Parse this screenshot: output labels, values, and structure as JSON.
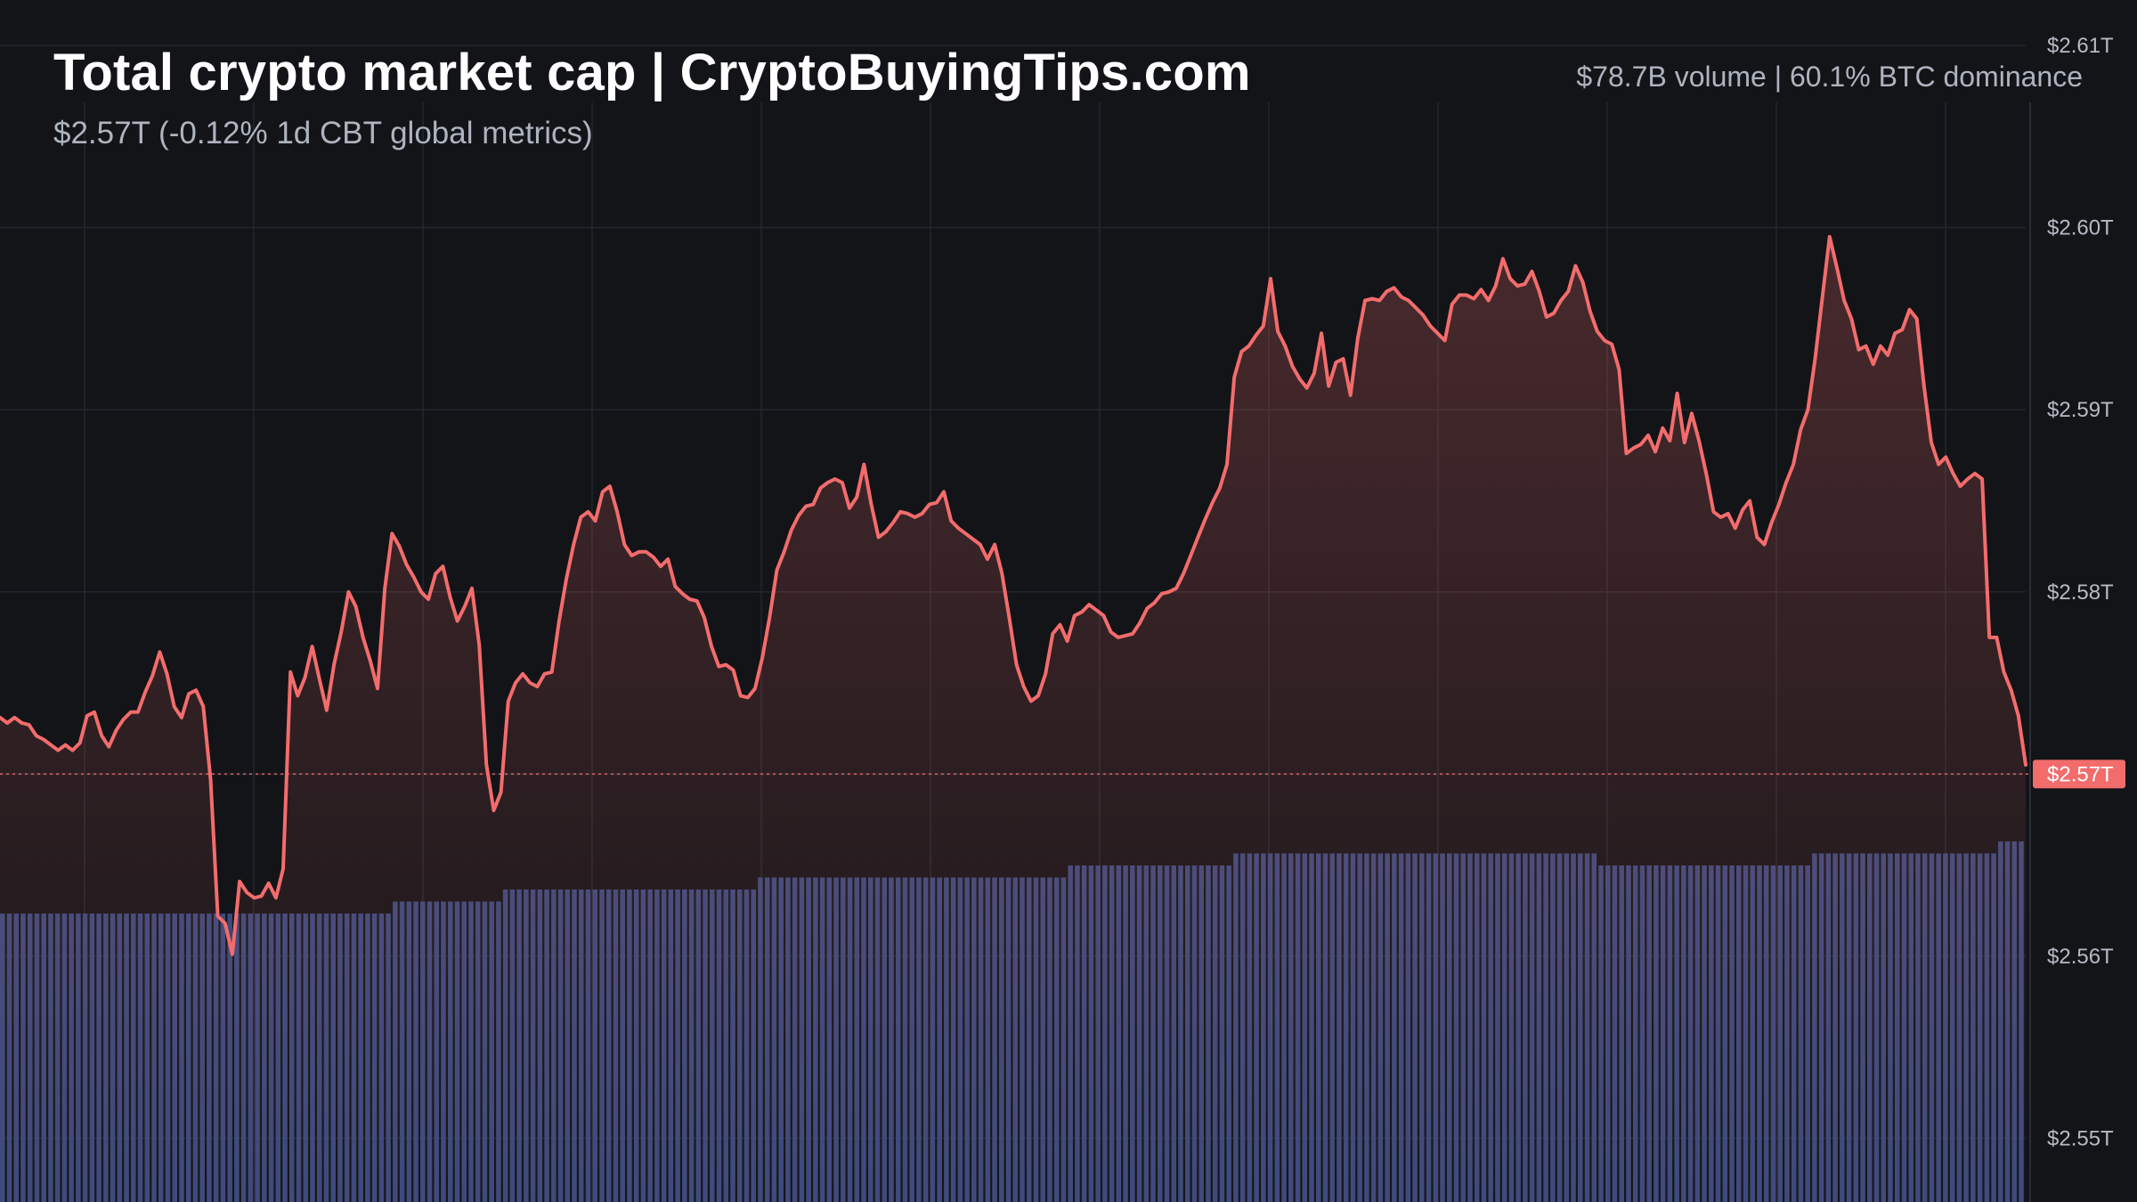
{
  "header": {
    "title": "Total crypto market cap | CryptoBuyingTips.com",
    "subtitle": "$2.57T (-0.12% 1d CBT global metrics)",
    "stats": "$78.7B volume | 60.1% BTC dominance"
  },
  "colors": {
    "background": "#121418",
    "line": "#f36c6c",
    "volume": "#3a4a7c",
    "grid": "#23262c",
    "price_tag": "#f36c6c"
  },
  "chart_data": {
    "type": "line",
    "title": "Total crypto market cap | CryptoBuyingTips.com",
    "ylim": [
      2.5465,
      2.6125
    ],
    "y_ticks": [
      {
        "value": 2.61,
        "label": "$2.61T"
      },
      {
        "value": 2.6,
        "label": "$2.60T"
      },
      {
        "value": 2.59,
        "label": "$2.59T"
      },
      {
        "value": 2.58,
        "label": "$2.58T"
      },
      {
        "value": 2.57,
        "label": "$2.57T"
      },
      {
        "value": 2.56,
        "label": "$2.56T"
      },
      {
        "value": 2.55,
        "label": "$2.55T"
      }
    ],
    "grid": true,
    "last_price": {
      "value": 2.57,
      "label": "$2.57T"
    },
    "series": [
      {
        "values": [
          2.5731,
          2.5728,
          2.5731,
          2.5728,
          2.5727,
          2.5721,
          2.5719,
          2.5716,
          2.5713,
          2.5716,
          2.5713,
          2.5717,
          2.5732,
          2.5734,
          2.5721,
          2.5715,
          2.5724,
          2.573,
          2.5734,
          2.5734,
          2.5745,
          2.5754,
          2.5767,
          2.5755,
          2.5737,
          2.5731,
          2.5744,
          2.5746,
          2.5737,
          2.5697,
          2.5622,
          2.5618,
          2.5601,
          2.5641,
          2.5635,
          2.5632,
          2.5633,
          2.564,
          2.5632,
          2.5648,
          2.5756,
          2.5743,
          2.5753,
          2.577,
          2.5752,
          2.5735,
          2.576,
          2.5778,
          2.58,
          2.5792,
          2.5775,
          2.5762,
          2.5747,
          2.5802,
          2.5832,
          2.5825,
          2.5815,
          2.5808,
          2.58,
          2.5796,
          2.581,
          2.5814,
          2.5797,
          2.5784,
          2.5792,
          2.5802,
          2.5771,
          2.5705,
          2.568,
          2.569,
          2.574,
          2.575,
          2.5755,
          2.575,
          2.5748,
          2.5755,
          2.5756,
          2.5784,
          2.5807,
          2.5826,
          2.5841,
          2.5844,
          2.5839,
          2.5855,
          2.5858,
          2.5844,
          2.5826,
          2.582,
          2.5822,
          2.5822,
          2.5819,
          2.5814,
          2.5818,
          2.5803,
          2.5799,
          2.5796,
          2.5795,
          2.5786,
          2.577,
          2.5759,
          2.576,
          2.5757,
          2.5743,
          2.5742,
          2.5747,
          2.5764,
          2.5786,
          2.5812,
          2.5822,
          2.5834,
          2.5842,
          2.5847,
          2.5848,
          2.5857,
          2.586,
          2.5862,
          2.586,
          2.5846,
          2.5852,
          2.587,
          2.5848,
          2.583,
          2.5833,
          2.5838,
          2.5844,
          2.5843,
          2.5841,
          2.5843,
          2.5848,
          2.5849,
          2.5855,
          2.5839,
          2.5835,
          2.5832,
          2.5829,
          2.5826,
          2.5818,
          2.5826,
          2.581,
          2.5786,
          2.576,
          2.5748,
          2.574,
          2.5743,
          2.5755,
          2.5777,
          2.5782,
          2.5773,
          2.5787,
          2.5789,
          2.5793,
          2.579,
          2.5787,
          2.5778,
          2.5775,
          2.5776,
          2.5777,
          2.5783,
          2.5791,
          2.5794,
          2.5799,
          2.58,
          2.5802,
          2.581,
          2.582,
          2.583,
          2.584,
          2.5849,
          2.5857,
          2.587,
          2.5918,
          2.5932,
          2.5935,
          2.5941,
          2.5946,
          2.5972,
          2.5943,
          2.5935,
          2.5924,
          2.5917,
          2.5912,
          2.592,
          2.5942,
          2.5913,
          2.5926,
          2.5928,
          2.5908,
          2.5939,
          2.596,
          2.5961,
          2.596,
          2.5965,
          2.5967,
          2.5962,
          2.596,
          2.5956,
          2.5952,
          2.5946,
          2.5942,
          2.5938,
          2.5958,
          2.5963,
          2.5963,
          2.5961,
          2.5966,
          2.596,
          2.5968,
          2.5983,
          2.5972,
          2.5968,
          2.5969,
          2.5976,
          2.5965,
          2.5951,
          2.5953,
          2.596,
          2.5965,
          2.5979,
          2.597,
          2.5954,
          2.5943,
          2.5938,
          2.5936,
          2.5922,
          2.5876,
          2.5879,
          2.5881,
          2.5886,
          2.5877,
          2.589,
          2.5883,
          2.5909,
          2.5882,
          2.5898,
          2.5883,
          2.5865,
          2.5844,
          2.5841,
          2.5843,
          2.5835,
          2.5845,
          2.585,
          2.583,
          2.5826,
          2.5838,
          2.5848,
          2.586,
          2.587,
          2.5889,
          2.59,
          2.5928,
          2.5962,
          2.5995,
          2.5978,
          2.596,
          2.595,
          2.5933,
          2.5935,
          2.5925,
          2.5935,
          2.593,
          2.5942,
          2.5944,
          2.5955,
          2.595,
          2.5913,
          2.5882,
          2.587,
          2.5874,
          2.5865,
          2.5858,
          2.5862,
          2.5865,
          2.5862,
          2.5775,
          2.5775,
          2.5756,
          2.5746,
          2.5732,
          2.5705
        ]
      },
      {
        "name": "volume",
        "values": [
          0.24,
          0.24,
          0.24,
          0.24,
          0.24,
          0.24,
          0.24,
          0.24,
          0.24,
          0.24,
          0.24,
          0.24,
          0.24,
          0.24,
          0.24,
          0.24,
          0.24,
          0.24,
          0.24,
          0.24,
          0.24,
          0.24,
          0.24,
          0.24,
          0.24,
          0.24,
          0.24,
          0.24,
          0.24,
          0.24,
          0.24,
          0.24,
          0.24,
          0.24,
          0.24,
          0.24,
          0.24,
          0.24,
          0.24,
          0.24,
          0.24,
          0.24,
          0.24,
          0.24,
          0.24,
          0.24,
          0.24,
          0.24,
          0.24,
          0.24,
          0.24,
          0.24,
          0.24,
          0.24,
          0.24,
          0.24,
          0.24,
          0.25,
          0.25,
          0.25,
          0.25,
          0.25,
          0.25,
          0.25,
          0.25,
          0.25,
          0.25,
          0.25,
          0.25,
          0.25,
          0.25,
          0.25,
          0.25,
          0.26,
          0.26,
          0.26,
          0.26,
          0.26,
          0.26,
          0.26,
          0.26,
          0.26,
          0.26,
          0.26,
          0.26,
          0.26,
          0.26,
          0.26,
          0.26,
          0.26,
          0.26,
          0.26,
          0.26,
          0.26,
          0.26,
          0.26,
          0.26,
          0.26,
          0.26,
          0.26,
          0.26,
          0.26,
          0.26,
          0.26,
          0.26,
          0.26,
          0.26,
          0.26,
          0.26,
          0.26,
          0.27,
          0.27,
          0.27,
          0.27,
          0.27,
          0.27,
          0.27,
          0.27,
          0.27,
          0.27,
          0.27,
          0.27,
          0.27,
          0.27,
          0.27,
          0.27,
          0.27,
          0.27,
          0.27,
          0.27,
          0.27,
          0.27,
          0.27,
          0.27,
          0.27,
          0.27,
          0.27,
          0.27,
          0.27,
          0.27,
          0.27,
          0.27,
          0.27,
          0.27,
          0.27,
          0.27,
          0.27,
          0.27,
          0.27,
          0.27,
          0.27,
          0.27,
          0.27,
          0.27,
          0.27,
          0.28,
          0.28,
          0.28,
          0.28,
          0.28,
          0.28,
          0.28,
          0.28,
          0.28,
          0.28,
          0.28,
          0.28,
          0.28,
          0.28,
          0.28,
          0.28,
          0.28,
          0.28,
          0.28,
          0.28,
          0.28,
          0.28,
          0.28,
          0.28,
          0.29,
          0.29,
          0.29,
          0.29,
          0.29,
          0.29,
          0.29,
          0.29,
          0.29,
          0.29,
          0.29,
          0.29,
          0.29,
          0.29,
          0.29,
          0.29,
          0.29,
          0.29,
          0.29,
          0.29,
          0.29,
          0.29,
          0.29,
          0.29,
          0.29,
          0.29,
          0.29,
          0.29,
          0.29,
          0.29,
          0.29,
          0.29,
          0.29,
          0.29,
          0.29,
          0.29,
          0.29,
          0.29,
          0.29,
          0.29,
          0.29,
          0.29,
          0.29,
          0.29,
          0.29,
          0.29,
          0.29,
          0.29,
          0.29,
          0.29,
          0.29,
          0.29,
          0.29,
          0.28,
          0.28,
          0.28,
          0.28,
          0.28,
          0.28,
          0.28,
          0.28,
          0.28,
          0.28,
          0.28,
          0.28,
          0.28,
          0.28,
          0.28,
          0.28,
          0.28,
          0.28,
          0.28,
          0.28,
          0.28,
          0.28,
          0.28,
          0.28,
          0.28,
          0.28,
          0.28,
          0.28,
          0.28,
          0.28,
          0.28,
          0.29,
          0.29,
          0.29,
          0.29,
          0.29,
          0.29,
          0.29,
          0.29,
          0.29,
          0.29,
          0.29,
          0.29,
          0.29,
          0.29,
          0.29,
          0.29,
          0.29,
          0.29,
          0.29,
          0.29,
          0.29,
          0.29,
          0.29,
          0.29,
          0.29,
          0.29,
          0.29,
          0.3,
          0.3,
          0.3,
          0.3
        ]
      }
    ]
  }
}
